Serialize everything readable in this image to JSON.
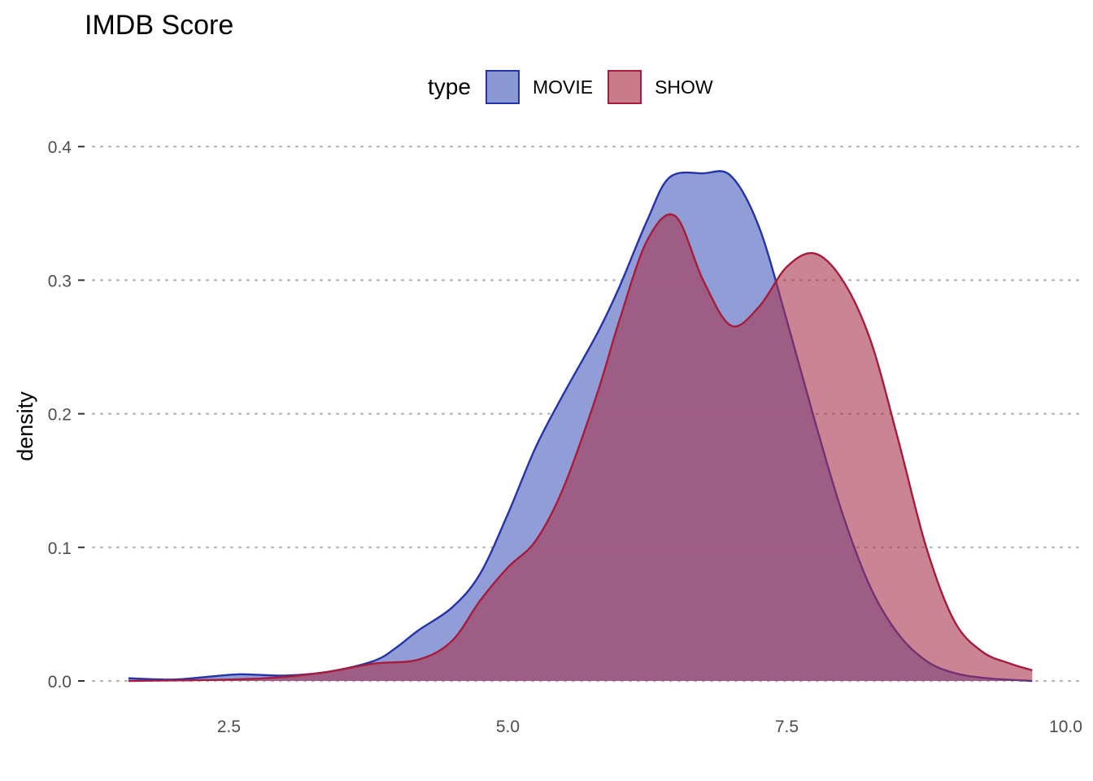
{
  "title": "IMDB Score",
  "legend": {
    "title": "type",
    "items": [
      {
        "label": "MOVIE",
        "fill": "#8a98d4",
        "stroke": "#2433a8"
      },
      {
        "label": "SHOW",
        "fill": "#c97b8b",
        "stroke": "#a81c3b"
      }
    ]
  },
  "chart_data": {
    "type": "area",
    "title": "IMDB Score",
    "xlabel": "",
    "ylabel": "density",
    "xlim": [
      1.4,
      10.0
    ],
    "ylim": [
      0,
      0.42
    ],
    "xticks": [
      "2.5",
      "5.0",
      "7.5",
      "10.0"
    ],
    "xtick_values": [
      2.5,
      5.0,
      7.5,
      10.0
    ],
    "yticks": [
      "0.0",
      "0.1",
      "0.2",
      "0.3",
      "0.4"
    ],
    "ytick_values": [
      0.0,
      0.1,
      0.2,
      0.3,
      0.4
    ],
    "grid": "horizontal dotted",
    "legend_position": "top",
    "series": [
      {
        "name": "MOVIE",
        "fill": "#8a98d4",
        "stroke": "#2433a8",
        "opacity": 0.95,
        "points": [
          [
            1.6,
            0.002
          ],
          [
            2.0,
            0.001
          ],
          [
            2.3,
            0.003
          ],
          [
            2.6,
            0.005
          ],
          [
            3.0,
            0.004
          ],
          [
            3.4,
            0.007
          ],
          [
            3.8,
            0.015
          ],
          [
            4.0,
            0.025
          ],
          [
            4.2,
            0.038
          ],
          [
            4.5,
            0.055
          ],
          [
            4.75,
            0.08
          ],
          [
            5.0,
            0.125
          ],
          [
            5.25,
            0.175
          ],
          [
            5.5,
            0.215
          ],
          [
            5.8,
            0.26
          ],
          [
            6.0,
            0.295
          ],
          [
            6.25,
            0.345
          ],
          [
            6.45,
            0.377
          ],
          [
            6.75,
            0.38
          ],
          [
            7.0,
            0.378
          ],
          [
            7.25,
            0.34
          ],
          [
            7.5,
            0.27
          ],
          [
            7.75,
            0.195
          ],
          [
            8.0,
            0.125
          ],
          [
            8.25,
            0.07
          ],
          [
            8.5,
            0.035
          ],
          [
            8.75,
            0.015
          ],
          [
            9.0,
            0.006
          ],
          [
            9.3,
            0.002
          ],
          [
            9.7,
            0.0
          ]
        ]
      },
      {
        "name": "SHOW",
        "fill": "#a8324c",
        "stroke": "#a81c3b",
        "opacity": 0.6,
        "points": [
          [
            1.6,
            0.0
          ],
          [
            2.5,
            0.001
          ],
          [
            3.0,
            0.003
          ],
          [
            3.4,
            0.007
          ],
          [
            3.8,
            0.013
          ],
          [
            4.2,
            0.016
          ],
          [
            4.5,
            0.03
          ],
          [
            4.75,
            0.06
          ],
          [
            5.0,
            0.085
          ],
          [
            5.25,
            0.105
          ],
          [
            5.5,
            0.145
          ],
          [
            5.8,
            0.215
          ],
          [
            6.0,
            0.27
          ],
          [
            6.25,
            0.33
          ],
          [
            6.5,
            0.348
          ],
          [
            6.75,
            0.3
          ],
          [
            7.0,
            0.266
          ],
          [
            7.25,
            0.28
          ],
          [
            7.5,
            0.31
          ],
          [
            7.75,
            0.32
          ],
          [
            8.0,
            0.3
          ],
          [
            8.25,
            0.255
          ],
          [
            8.5,
            0.18
          ],
          [
            8.75,
            0.1
          ],
          [
            9.0,
            0.045
          ],
          [
            9.25,
            0.022
          ],
          [
            9.5,
            0.013
          ],
          [
            9.7,
            0.008
          ]
        ]
      }
    ]
  }
}
